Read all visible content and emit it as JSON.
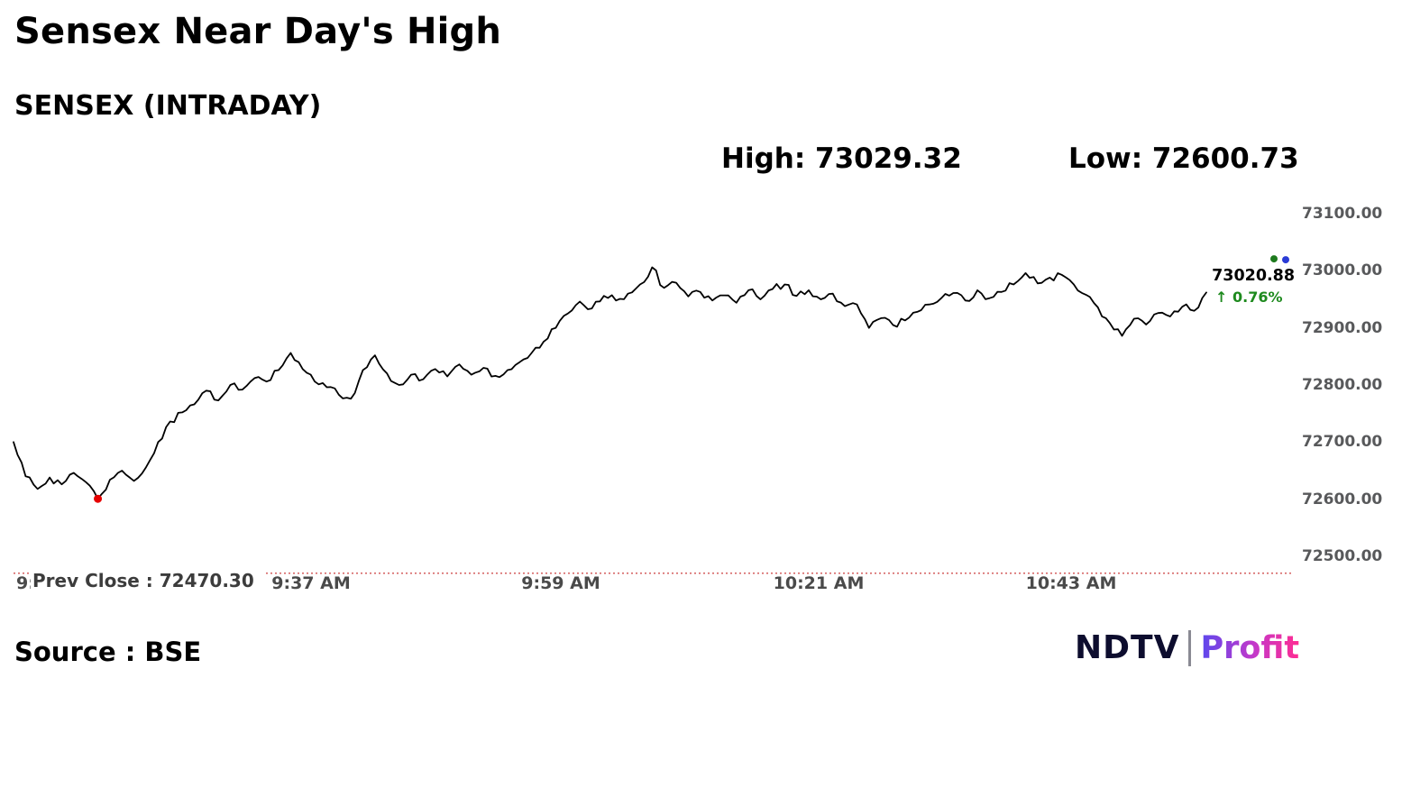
{
  "header": {
    "title": "Sensex Near Day's High",
    "subtitle": "SENSEX (INTRADAY)",
    "high_label": "High: 73029.32",
    "low_label": "Low: 72600.73"
  },
  "chart": {
    "prev_close_label": "Prev Close : 72470.30",
    "price_label": "73020.88",
    "change_label": "↑ 0.76%"
  },
  "footer": {
    "source": "Source : BSE",
    "logo_ndtv": "NDTV",
    "logo_profit": "Profit"
  },
  "colors": {
    "line": "#000000",
    "low_dot": "#e60000",
    "prev_close_line": "#d05050",
    "marker_green": "#1e7a1e",
    "marker_blue": "#2a3bd6",
    "change_green": "#1e8a1e",
    "axis_text": "#58595b",
    "profit_gradient_from": "#5b48ee",
    "profit_gradient_to": "#ff2d92"
  },
  "chart_data": {
    "type": "line",
    "title": "Sensex Near Day's High",
    "subtitle": "SENSEX (INTRADAY)",
    "high": 73029.32,
    "low": 72600.73,
    "prev_close": 72470.3,
    "last_price": 73020.88,
    "change_pct": 0.76,
    "source": "BSE",
    "ylim": [
      72460,
      73100
    ],
    "grid": false,
    "legend": false,
    "y_tick_labels": [
      "73100.00",
      "73000.00",
      "72900.00",
      "72800.00",
      "72700.00",
      "72600.00",
      "72500.00"
    ],
    "x_tick_labels": [
      "9:15 AM",
      "9:37 AM",
      "9:59 AM",
      "10:21 AM",
      "10:43 AM"
    ],
    "series": [
      {
        "name": "SENSEX",
        "values": [
          72700,
          72640,
          72618,
          72638,
          72626,
          72646,
          72630,
          72600.73,
          72634,
          72650,
          72632,
          72656,
          72700,
          72736,
          72752,
          72766,
          72790,
          72773,
          72800,
          72792,
          72812,
          72806,
          72826,
          72856,
          72828,
          72806,
          72796,
          72783,
          72776,
          72826,
          72852,
          72820,
          72800,
          72818,
          72810,
          72828,
          72815,
          72836,
          72818,
          72830,
          72816,
          72826,
          72840,
          72856,
          72876,
          72900,
          72925,
          72946,
          72934,
          72956,
          72948,
          72960,
          72976,
          73006,
          72970,
          72979,
          72955,
          72963,
          72948,
          72957,
          72944,
          72966,
          72950,
          72968,
          72976,
          72956,
          72966,
          72950,
          72960,
          72938,
          72941,
          72900,
          72917,
          72905,
          72913,
          72928,
          72941,
          72952,
          72961,
          72948,
          72966,
          72952,
          72963,
          72976,
          72996,
          72978,
          72988,
          72993,
          72976,
          72958,
          72936,
          72908,
          72886,
          72916,
          72906,
          72926,
          72920,
          72937,
          72930,
          72962
        ]
      }
    ]
  }
}
